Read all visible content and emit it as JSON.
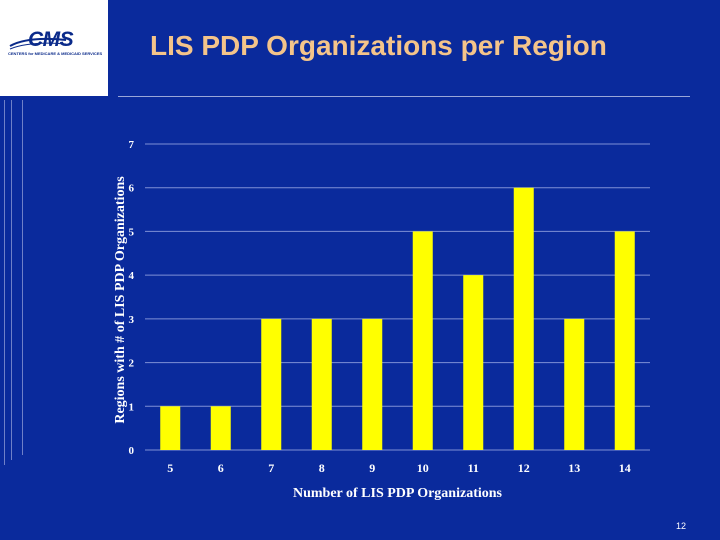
{
  "logo": {
    "text": "CMS",
    "tagline": "CENTERS for MEDICARE & MEDICAID SERVICES"
  },
  "slide_title": "LIS PDP Organizations per Region",
  "slide_number": "12",
  "colors": {
    "background": "#0a2a9c",
    "bar": "#ffff00",
    "title": "#f4c48a",
    "grid": "#7f90d6"
  },
  "chart_data": {
    "type": "bar",
    "title": "",
    "xlabel": "Number of LIS PDP Organizations",
    "ylabel": "Regions with # of LIS PDP Organizations",
    "categories": [
      "5",
      "6",
      "7",
      "8",
      "9",
      "10",
      "11",
      "12",
      "13",
      "14"
    ],
    "values": [
      1,
      1,
      3,
      3,
      3,
      5,
      4,
      6,
      3,
      5
    ],
    "ylim": [
      0,
      7
    ],
    "yticks": [
      "0",
      "1",
      "2",
      "3",
      "4",
      "5",
      "6",
      "7"
    ],
    "grid": true,
    "legend": "none"
  }
}
